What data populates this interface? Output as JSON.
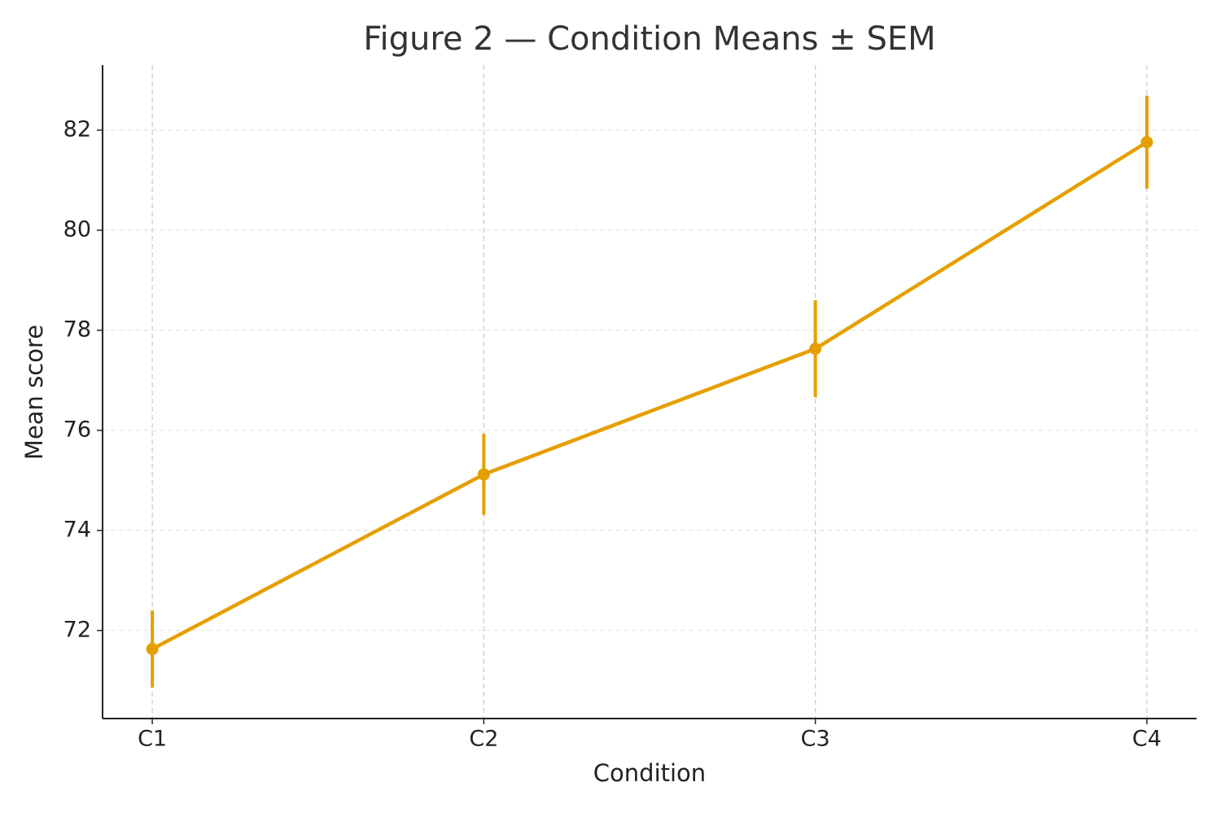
{
  "chart_data": {
    "type": "line",
    "title": "Figure 2 — Condition Means ± SEM",
    "x_label": "Condition",
    "y_label": "Mean score",
    "categories": [
      "C1",
      "C2",
      "C3",
      "C4"
    ],
    "series": [
      {
        "color": "#E69F00",
        "values": [
          71.63,
          75.12,
          77.63,
          81.76
        ],
        "errors": [
          0.77,
          0.81,
          0.97,
          0.93
        ]
      }
    ],
    "ylim": [
      70.24,
      83.3
    ],
    "yticks": [
      72,
      74,
      76,
      78,
      80,
      82
    ],
    "grid": true
  }
}
